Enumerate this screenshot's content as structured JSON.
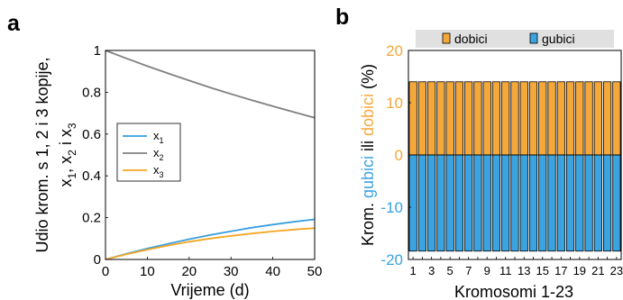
{
  "panels": {
    "a": {
      "letter": "a"
    },
    "b": {
      "letter": "b"
    }
  },
  "colors": {
    "x1": "#3a9fdd",
    "x2": "#808080",
    "x3": "#f5a623",
    "gain": "#f5a83a",
    "loss": "#3aa3e0",
    "legend_band": "#e0e0e0"
  },
  "chart_data": [
    {
      "type": "line",
      "panel": "a",
      "xlabel": "Vrijeme (d)",
      "ylabel_line1": "Udio krom. s 1, 2 i 3 kopije,",
      "ylabel_line2_parts": [
        "x",
        "1",
        ", x",
        "2",
        " i x",
        "3"
      ],
      "xlim": [
        0,
        50
      ],
      "ylim": [
        0,
        1
      ],
      "x_ticks": [
        0,
        10,
        20,
        30,
        40,
        50
      ],
      "y_ticks": [
        0,
        0.2,
        0.4,
        0.6,
        0.8,
        1
      ],
      "y_tick_labels": [
        "0",
        "0.2",
        "0.4",
        "0.6",
        "0.8",
        "1"
      ],
      "legend_position": "center-left",
      "x": [
        0,
        5,
        10,
        15,
        20,
        25,
        30,
        35,
        40,
        45,
        50
      ],
      "series": [
        {
          "name": "x",
          "sub": "1",
          "color_key": "x1",
          "values": [
            0,
            0.027,
            0.052,
            0.075,
            0.097,
            0.117,
            0.135,
            0.152,
            0.167,
            0.18,
            0.192
          ]
        },
        {
          "name": "x",
          "sub": "2",
          "color_key": "x2",
          "values": [
            1,
            0.962,
            0.925,
            0.89,
            0.856,
            0.823,
            0.792,
            0.762,
            0.733,
            0.705,
            0.678
          ]
        },
        {
          "name": "x",
          "sub": "3",
          "color_key": "x3",
          "values": [
            0,
            0.025,
            0.047,
            0.067,
            0.085,
            0.1,
            0.113,
            0.124,
            0.134,
            0.143,
            0.15
          ]
        }
      ]
    },
    {
      "type": "bar",
      "panel": "b",
      "xlabel": "Kromosomi 1-23",
      "ylabel_parts": [
        {
          "text": "Krom. ",
          "color_key": null
        },
        {
          "text": "gubici",
          "color_key": "loss"
        },
        {
          "text": " ili ",
          "color_key": null
        },
        {
          "text": "dobici",
          "color_key": "gain"
        },
        {
          "text": " (%)",
          "color_key": null
        }
      ],
      "ylim": [
        -20,
        20
      ],
      "y_ticks": [
        -20,
        -10,
        0,
        10,
        20
      ],
      "x_tick_labels": [
        "1",
        "3",
        "5",
        "7",
        "9",
        "11",
        "13",
        "15",
        "17",
        "19",
        "21",
        "23"
      ],
      "categories": [
        "1",
        "2",
        "3",
        "4",
        "5",
        "6",
        "7",
        "8",
        "9",
        "10",
        "11",
        "12",
        "13",
        "14",
        "15",
        "16",
        "17",
        "18",
        "19",
        "20",
        "21",
        "22",
        "23"
      ],
      "legend_position": "top",
      "series": [
        {
          "name": "dobici",
          "color_key": "gain",
          "values": [
            14,
            14,
            14,
            14,
            14,
            14,
            14,
            14,
            14,
            14,
            14,
            14,
            14,
            14,
            14,
            14,
            14,
            14,
            14,
            14,
            14,
            14,
            14
          ]
        },
        {
          "name": "gubici",
          "color_key": "loss",
          "values": [
            -18.4,
            -18.4,
            -18.4,
            -18.4,
            -18.4,
            -18.4,
            -18.4,
            -18.4,
            -18.4,
            -18.4,
            -18.4,
            -18.4,
            -18.4,
            -18.4,
            -18.4,
            -18.4,
            -18.4,
            -18.4,
            -18.4,
            -18.4,
            -18.4,
            -18.4,
            -18.4
          ]
        }
      ]
    }
  ]
}
